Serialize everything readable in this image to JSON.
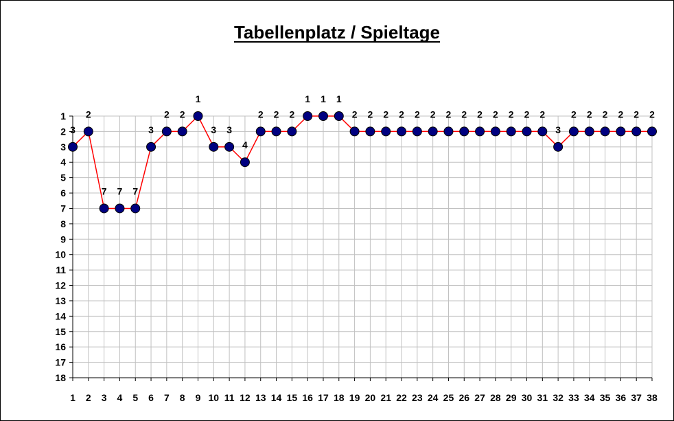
{
  "chart_data": {
    "type": "line",
    "title": "Tabellenplatz / Spieltage",
    "xlabel": "",
    "ylabel": "",
    "x": [
      1,
      2,
      3,
      4,
      5,
      6,
      7,
      8,
      9,
      10,
      11,
      12,
      13,
      14,
      15,
      16,
      17,
      18,
      19,
      20,
      21,
      22,
      23,
      24,
      25,
      26,
      27,
      28,
      29,
      30,
      31,
      32,
      33,
      34,
      35,
      36,
      37,
      38
    ],
    "series": [
      {
        "values": [
          3,
          2,
          7,
          7,
          7,
          3,
          2,
          2,
          1,
          3,
          3,
          4,
          2,
          2,
          2,
          1,
          1,
          1,
          2,
          2,
          2,
          2,
          2,
          2,
          2,
          2,
          2,
          2,
          2,
          2,
          2,
          3,
          2,
          2,
          2,
          2,
          2,
          2
        ]
      }
    ],
    "xlim": [
      1,
      38
    ],
    "ylim": [
      1,
      18
    ],
    "y_inverted": true,
    "y_ticks": [
      1,
      2,
      3,
      4,
      5,
      6,
      7,
      8,
      9,
      10,
      11,
      12,
      13,
      14,
      15,
      16,
      17,
      18
    ],
    "grid": true,
    "data_labels": true,
    "legend": "none",
    "colors": {
      "line": "#ff0000",
      "marker_fill": "#000080",
      "grid": "#c0c0c0",
      "text": "#000000"
    }
  }
}
